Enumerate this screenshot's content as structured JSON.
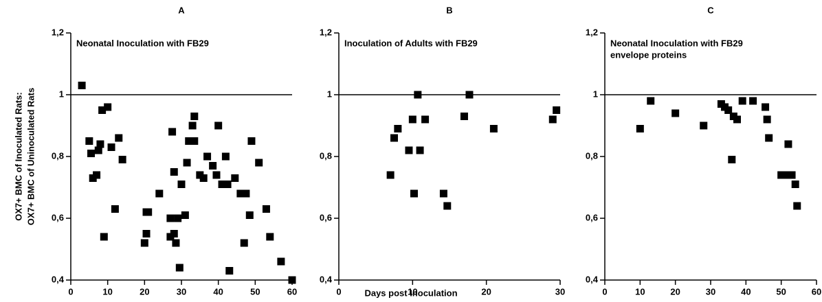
{
  "chart_data": [
    {
      "type": "scatter",
      "title": "A",
      "annotation": [
        "Neonatal Inoculation with FB29"
      ],
      "x": [
        3,
        5,
        5.5,
        6,
        7,
        7.5,
        8,
        8.5,
        9,
        10,
        11,
        12,
        13,
        14,
        20,
        20.5,
        20.5,
        21,
        24,
        27,
        27,
        27.5,
        28,
        28,
        28.5,
        29,
        29.5,
        30,
        31,
        31.5,
        32,
        33,
        33.5,
        33.5,
        35,
        36,
        37,
        38.5,
        39.5,
        40,
        41,
        42,
        42.5,
        43,
        44.5,
        46,
        47,
        47.5,
        48.5,
        49,
        51,
        53,
        54,
        57,
        60
      ],
      "values": [
        1.03,
        0.85,
        0.81,
        0.73,
        0.74,
        0.82,
        0.84,
        0.95,
        0.54,
        0.96,
        0.83,
        0.63,
        0.86,
        0.79,
        0.52,
        0.62,
        0.55,
        0.62,
        0.68,
        0.6,
        0.54,
        0.88,
        0.75,
        0.55,
        0.52,
        0.6,
        0.44,
        0.71,
        0.61,
        0.78,
        0.85,
        0.9,
        0.93,
        0.85,
        0.74,
        0.73,
        0.8,
        0.77,
        0.74,
        0.9,
        0.71,
        0.8,
        0.71,
        0.43,
        0.73,
        0.68,
        0.52,
        0.68,
        0.61,
        0.85,
        0.78,
        0.63,
        0.54,
        0.46,
        0.4
      ],
      "color": "#000000",
      "hline": 1,
      "xlim": [
        0,
        60
      ],
      "xticks": [
        0,
        10,
        20,
        30,
        40,
        50,
        60
      ],
      "ylim": [
        0.4,
        1.2
      ],
      "yticks": [
        {
          "value": 0.4,
          "label": "0,4"
        },
        {
          "value": 0.6,
          "label": "0,6"
        },
        {
          "value": 0.8,
          "label": "0,8"
        },
        1,
        {
          "value": 1.2,
          "label": "1,2"
        }
      ]
    },
    {
      "type": "scatter",
      "title": "B",
      "annotation": [
        "Inoculation of Adults with FB29"
      ],
      "x": [
        7,
        7.5,
        8,
        9.5,
        10,
        10.2,
        10.7,
        11,
        11.7,
        14.2,
        14.7,
        17,
        17.7,
        21,
        29,
        29.5
      ],
      "values": [
        0.74,
        0.86,
        0.89,
        0.82,
        0.92,
        0.68,
        1.0,
        0.82,
        0.92,
        0.68,
        0.64,
        0.93,
        1.0,
        0.89,
        0.92,
        0.95
      ],
      "color": "#000000",
      "hline": 1,
      "xlim": [
        0,
        30
      ],
      "xticks": [
        0,
        10,
        20,
        30
      ],
      "ylim": [
        0.4,
        1.2
      ],
      "yticks": [
        {
          "value": 0.4,
          "label": "0,4"
        },
        {
          "value": 0.6,
          "label": "0,6"
        },
        {
          "value": 0.8,
          "label": "0,8"
        },
        1,
        {
          "value": 1.2,
          "label": "1,2"
        }
      ]
    },
    {
      "type": "scatter",
      "title": "C",
      "annotation": [
        "Neonatal Inoculation with FB29",
        "envelope proteins"
      ],
      "x": [
        10,
        13,
        20,
        28,
        33,
        34,
        35,
        36,
        36.5,
        37.5,
        39,
        42,
        45.5,
        46,
        46.5,
        50,
        51,
        52,
        53,
        54,
        54.5
      ],
      "values": [
        0.89,
        0.98,
        0.94,
        0.9,
        0.97,
        0.96,
        0.95,
        0.79,
        0.93,
        0.92,
        0.98,
        0.98,
        0.96,
        0.92,
        0.86,
        0.74,
        0.74,
        0.84,
        0.74,
        0.71,
        0.64
      ],
      "color": "#000000",
      "hline": 1,
      "xlim": [
        0,
        60
      ],
      "xticks": [
        0,
        10,
        20,
        30,
        40,
        50,
        60
      ],
      "ylim": [
        0.4,
        1.2
      ],
      "yticks": [
        {
          "value": 0.4,
          "label": "0,4"
        },
        {
          "value": 0.6,
          "label": "0,6"
        },
        {
          "value": 0.8,
          "label": "0,8"
        },
        1,
        {
          "value": 1.2,
          "label": "1,2"
        }
      ]
    }
  ],
  "xlabel": "Days post Inoculation",
  "ylabel": [
    "OX7+ BMC of Inoculated Rats:",
    "OX7+ BMC of Uninoculated Rats"
  ]
}
